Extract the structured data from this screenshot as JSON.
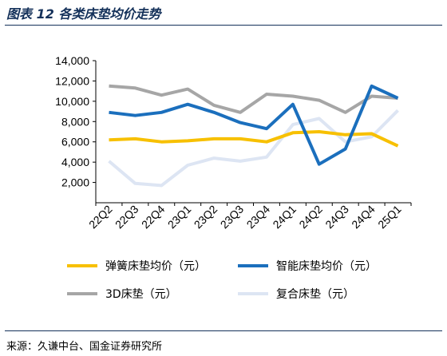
{
  "header": {
    "title": "图表 12 各类床垫均价走势"
  },
  "footer": {
    "source": "来源：久谦中台、国金证券研究所"
  },
  "chart_data": {
    "type": "line",
    "title": "",
    "xlabel": "",
    "ylabel": "",
    "categories": [
      "22Q2",
      "22Q3",
      "22Q4",
      "23Q1",
      "23Q2",
      "23Q3",
      "23Q4",
      "24Q1",
      "24Q2",
      "24Q3",
      "24Q4",
      "25Q1"
    ],
    "ylim": [
      0,
      14000
    ],
    "yticks": [
      2000,
      4000,
      6000,
      8000,
      10000,
      12000,
      14000
    ],
    "ytick_labels": [
      "2,000",
      "4,000",
      "6,000",
      "8,000",
      "10,000",
      "12,000",
      "14,000"
    ],
    "grid": false,
    "legend_position": "bottom",
    "series": [
      {
        "name": "弹簧床垫均价（元）",
        "color": "#f7c000",
        "values": [
          6200,
          6300,
          6000,
          6100,
          6300,
          6300,
          6000,
          6900,
          7000,
          6700,
          6800,
          5600
        ]
      },
      {
        "name": "智能床垫均价（元）",
        "color": "#1b6fbd",
        "values": [
          8900,
          8600,
          8900,
          9700,
          8900,
          7900,
          7300,
          9700,
          3800,
          5300,
          11500,
          10300
        ]
      },
      {
        "name": "3D床垫（元）",
        "color": "#a6a6a6",
        "values": [
          11500,
          11300,
          10600,
          11200,
          9600,
          8900,
          10700,
          10500,
          10100,
          8900,
          10500,
          10300
        ]
      },
      {
        "name": "复合床垫（元）",
        "color": "#dde5f3",
        "values": [
          4100,
          1900,
          1700,
          3700,
          4400,
          4100,
          4500,
          7700,
          8300,
          6000,
          6500,
          9100
        ]
      }
    ]
  }
}
